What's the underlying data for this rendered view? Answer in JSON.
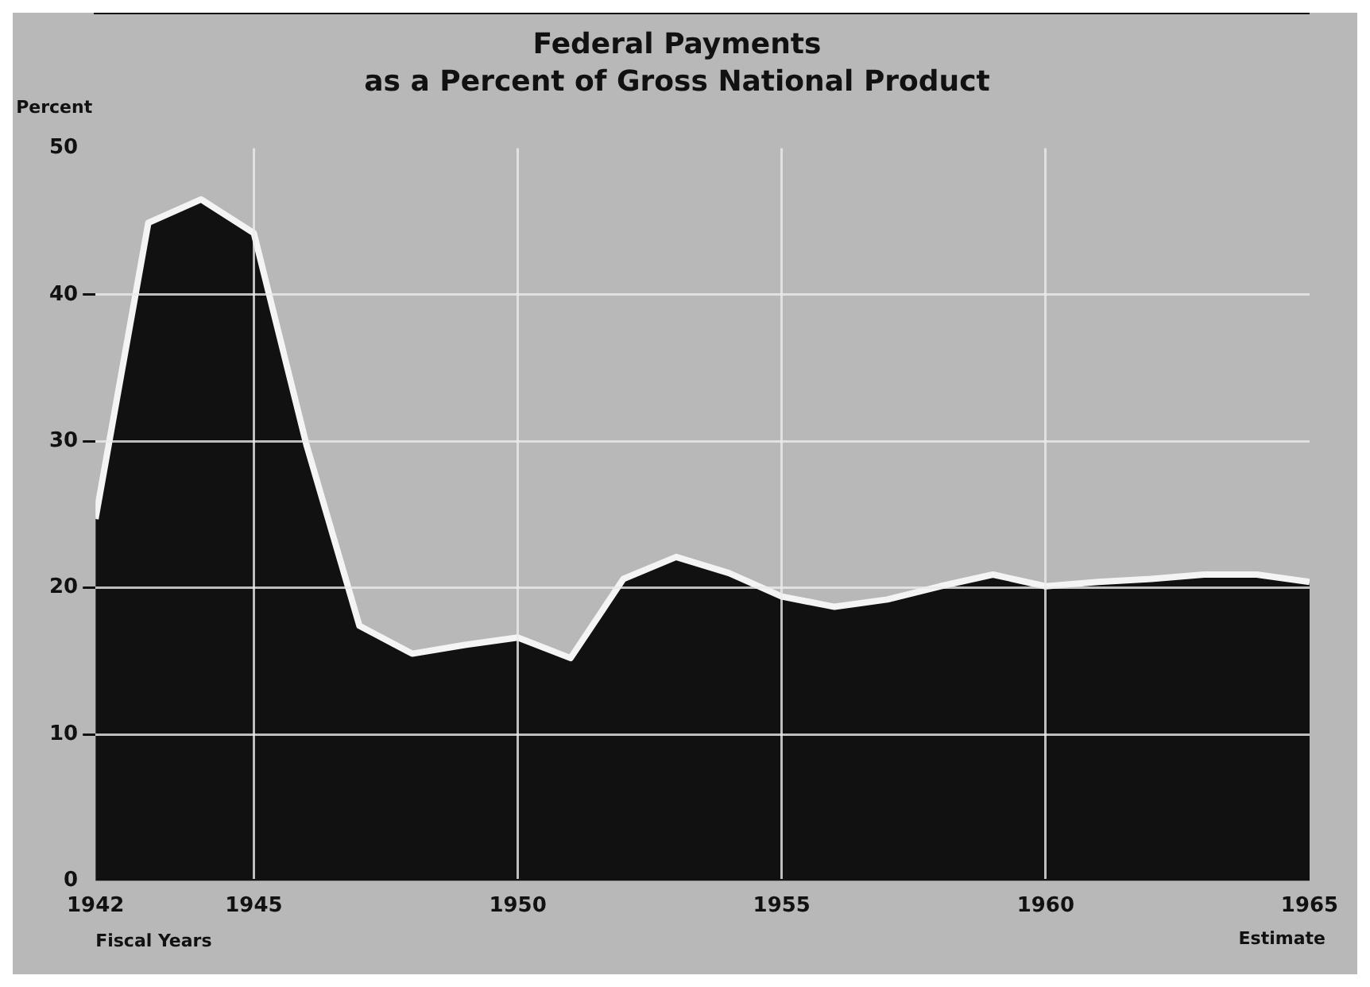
{
  "chart_data": {
    "type": "area",
    "title": "Federal Payments",
    "subtitle": "as a Percent of Gross National Product",
    "xlabel": "Fiscal Years",
    "ylabel": "Percent",
    "annotations": [
      "Estimate"
    ],
    "x": [
      1942,
      1943,
      1944,
      1945,
      1946,
      1947,
      1948,
      1949,
      1950,
      1951,
      1952,
      1953,
      1954,
      1955,
      1956,
      1957,
      1958,
      1959,
      1960,
      1961,
      1962,
      1963,
      1964,
      1965
    ],
    "series": [
      {
        "color": "#111111",
        "values": [
          24.7,
          44.9,
          46.5,
          44.2,
          29.7,
          17.4,
          15.5,
          16.1,
          16.6,
          15.2,
          20.6,
          22.1,
          21,
          19.4,
          18.7,
          19.2,
          20.1,
          20.9,
          20.1,
          20.4,
          20.6,
          20.9,
          20.9,
          20.4
        ]
      }
    ],
    "xlim": [
      1942,
      1965
    ],
    "xticks": [
      1942,
      1945,
      1950,
      1955,
      1960,
      1965
    ],
    "ylim": [
      0,
      50
    ],
    "yticks": [
      0,
      10,
      20,
      30,
      40,
      50
    ],
    "grid": true,
    "legend": false
  }
}
